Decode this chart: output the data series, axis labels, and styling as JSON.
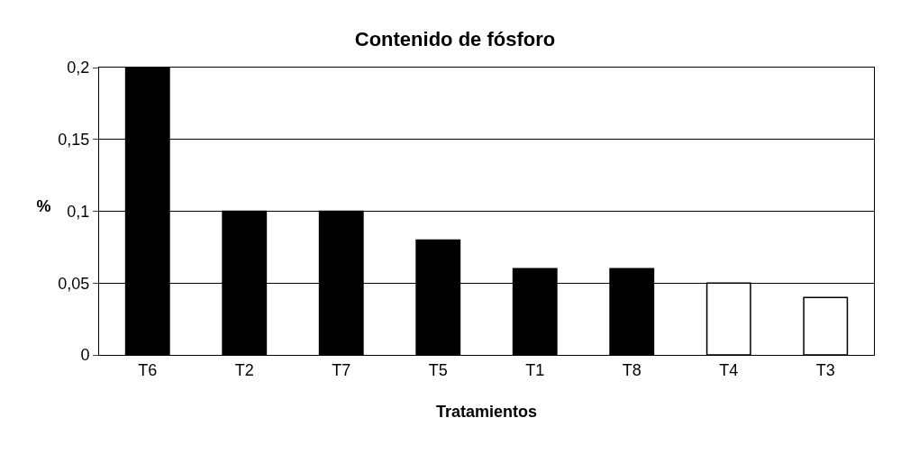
{
  "chart_data": {
    "type": "bar",
    "title": "Contenido de fósforo",
    "xlabel": "Tratamientos",
    "ylabel": "%",
    "categories": [
      "T6",
      "T2",
      "T7",
      "T5",
      "T1",
      "T8",
      "T4",
      "T3"
    ],
    "values": [
      0.2,
      0.1,
      0.1,
      0.08,
      0.06,
      0.06,
      0.05,
      0.04
    ],
    "colors": [
      "#000000",
      "#000000",
      "#000000",
      "#000000",
      "#000000",
      "#000000",
      "#ffffff",
      "#ffffff"
    ],
    "ylim": [
      0,
      0.2
    ],
    "yticks": [
      0,
      {
        "value": 0.05,
        "label": "0,05"
      },
      {
        "value": 0.1,
        "label": "0,1"
      },
      {
        "value": 0.15,
        "label": "0,15"
      },
      {
        "value": 0.2,
        "label": "0,2"
      }
    ],
    "grid": "y"
  }
}
